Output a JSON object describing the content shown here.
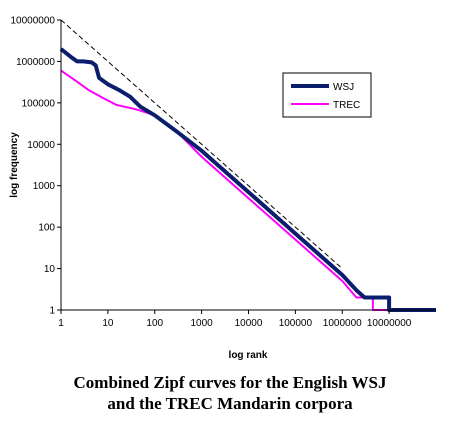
{
  "chart_data": {
    "type": "line",
    "xlabel": "log rank",
    "ylabel": "log frequency",
    "x_scale": "log",
    "y_scale": "log",
    "xlim": [
      1,
      100000000
    ],
    "ylim": [
      1,
      10000000
    ],
    "x_ticks": [
      "1",
      "10",
      "100",
      "1000",
      "10000",
      "100000",
      "1000000",
      "10000000"
    ],
    "y_ticks": [
      "1",
      "10",
      "100",
      "1000",
      "10000",
      "100000",
      "1000000",
      "10000000"
    ],
    "grid": false,
    "legend_position": "top-right",
    "series": [
      {
        "name": "WSJ",
        "color": "#0b1e6e",
        "style": "thick",
        "points": [
          [
            1,
            2000000
          ],
          [
            1.6,
            1300000
          ],
          [
            2.2,
            1000000
          ],
          [
            3,
            1000000
          ],
          [
            4.5,
            950000
          ],
          [
            5.5,
            800000
          ],
          [
            6.5,
            400000
          ],
          [
            10,
            280000
          ],
          [
            18,
            200000
          ],
          [
            30,
            140000
          ],
          [
            50,
            80000
          ],
          [
            100,
            50000
          ],
          [
            300,
            20000
          ],
          [
            1000,
            7000
          ],
          [
            10000,
            700
          ],
          [
            100000,
            70
          ],
          [
            1000000,
            7
          ],
          [
            2000000,
            3
          ],
          [
            3000000,
            2
          ],
          [
            10000000,
            2
          ],
          [
            10000000,
            1
          ],
          [
            100000000,
            1
          ]
        ]
      },
      {
        "name": "TREC",
        "color": "#ff00ff",
        "style": "normal",
        "points": [
          [
            1,
            600000
          ],
          [
            2,
            350000
          ],
          [
            4,
            200000
          ],
          [
            8,
            130000
          ],
          [
            15,
            90000
          ],
          [
            40,
            70000
          ],
          [
            100,
            50000
          ],
          [
            300,
            20000
          ],
          [
            1000,
            5000
          ],
          [
            10000,
            500
          ],
          [
            100000,
            50
          ],
          [
            1000000,
            5
          ],
          [
            2000000,
            2
          ],
          [
            4500000,
            2
          ],
          [
            4500000,
            1
          ],
          [
            50000000,
            1
          ]
        ]
      },
      {
        "name": "",
        "color": "#000000",
        "style": "dashed",
        "points": [
          [
            1,
            10000000
          ],
          [
            1000000,
            10
          ]
        ]
      }
    ]
  },
  "caption": {
    "line1": "Combined Zipf curves for the English WSJ",
    "line2": "and the TREC Mandarin corpora"
  }
}
